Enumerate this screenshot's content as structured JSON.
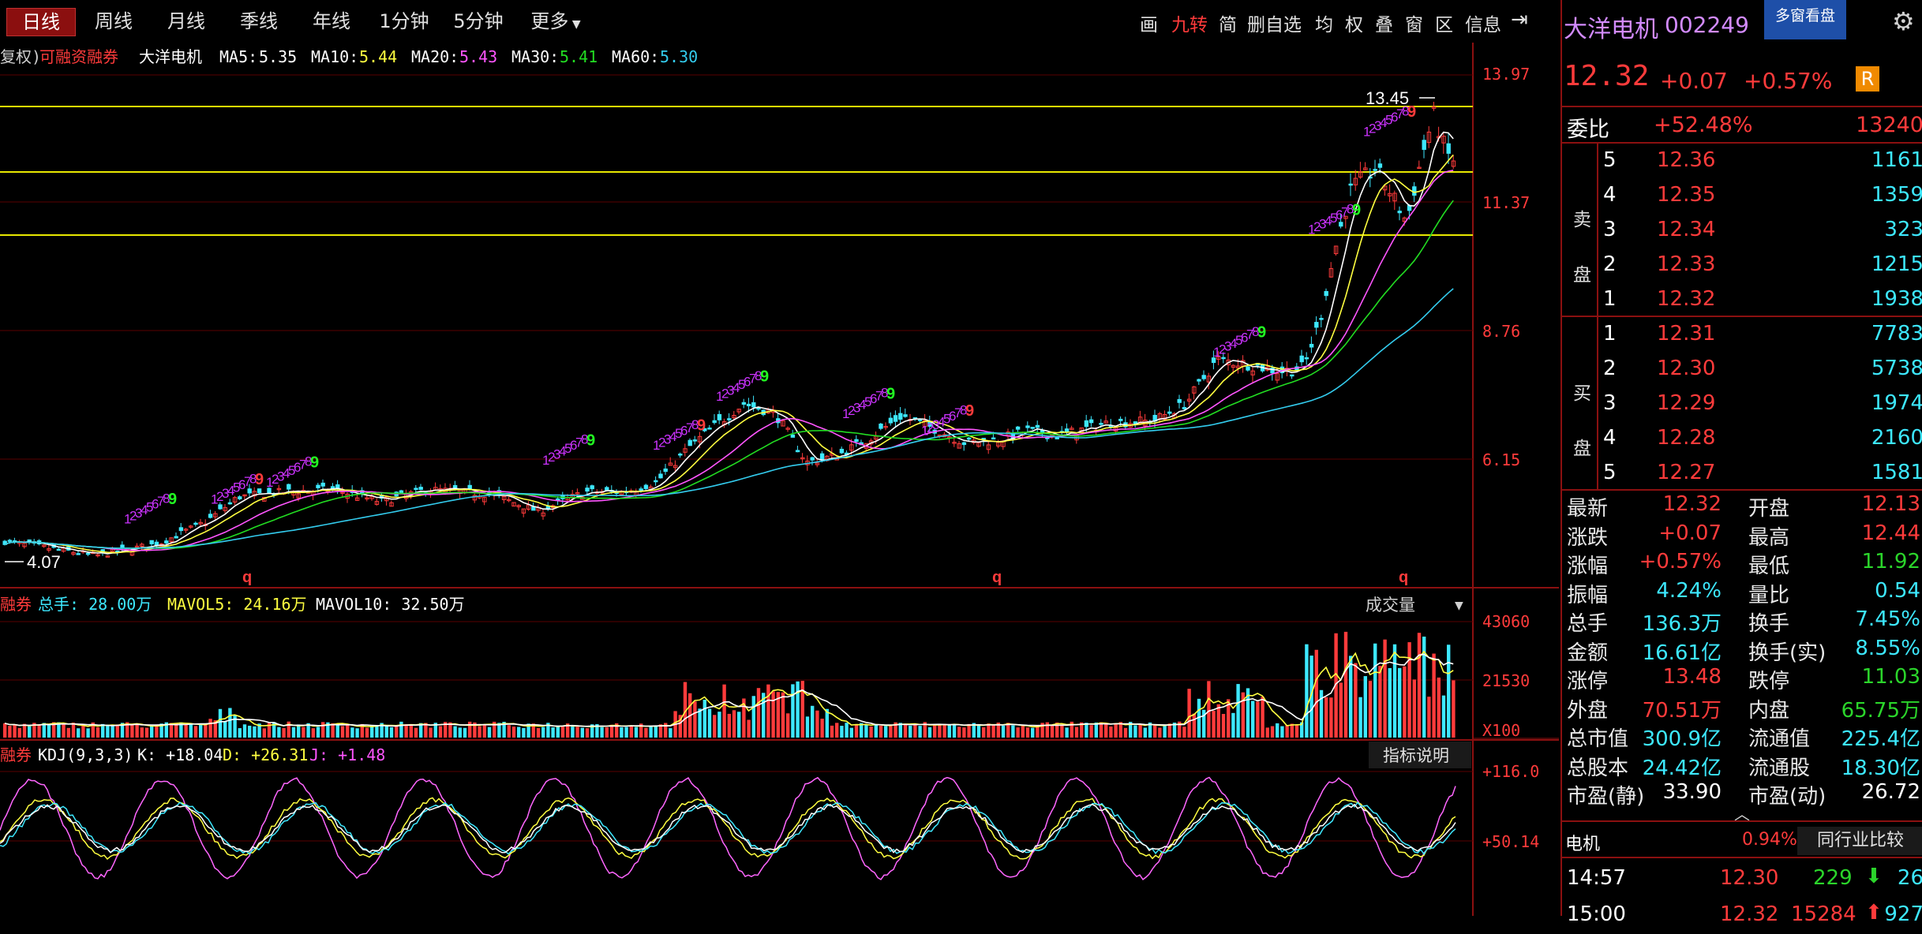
{
  "periods": [
    "日线",
    "周线",
    "月线",
    "季线",
    "年线",
    "1分钟",
    "5分钟",
    "更多"
  ],
  "tools": [
    "画",
    "九转",
    "简",
    "删自选",
    "均",
    "权",
    "叠",
    "窗",
    "区",
    "信息"
  ],
  "stock": {
    "name": "大洋电机",
    "code": "002249",
    "price": "12.32",
    "change": "+0.07",
    "change_pct": "+0.57%",
    "r_badge": "R",
    "multi_window": "多窗看盘"
  },
  "main_header": {
    "prefix": "复权)",
    "rzrq": "可融资融券",
    "name": "大洋电机",
    "ma": [
      {
        "label": "MA5:",
        "value": "5.35",
        "color": "#ffffff"
      },
      {
        "label": "MA10:",
        "value": "5.44",
        "color": "#ffff40"
      },
      {
        "label": "MA20:",
        "value": "5.43",
        "color": "#ff55ff"
      },
      {
        "label": "MA30:",
        "value": "5.41",
        "color": "#22dd22"
      },
      {
        "label": "MA60:",
        "value": "5.30",
        "color": "#33ccee"
      }
    ]
  },
  "price_axis": [
    "13.97",
    "11.37",
    "8.76",
    "6.15"
  ],
  "annotations": {
    "high": "13.45",
    "low": "4.07",
    "q": "q"
  },
  "volume_header": {
    "prefix": "融券",
    "total": "总手: 28.00万",
    "mavol5": "MAVOL5: 24.16万",
    "mavol10": "MAVOL10: 32.50万",
    "selector": "成交量"
  },
  "volume_axis": [
    "43060",
    "21530",
    "X100"
  ],
  "kdj_header": {
    "prefix": "融券",
    "name": "KDJ(9,3,3)",
    "k": "K: +18.04",
    "d": "D: +26.31",
    "j": "J: +1.48",
    "help": "指标说明"
  },
  "kdj_axis": [
    "+116.0",
    "+50.14"
  ],
  "order_book": {
    "wb_label": "委比",
    "wb_pct": "+52.48%",
    "wb_diff": "13240",
    "sell_label": [
      "卖",
      "盘"
    ],
    "buy_label": [
      "买",
      "盘"
    ],
    "asks": [
      {
        "lv": "5",
        "price": "12.36",
        "vol": "1161"
      },
      {
        "lv": "4",
        "price": "12.35",
        "vol": "1359"
      },
      {
        "lv": "3",
        "price": "12.34",
        "vol": "323"
      },
      {
        "lv": "2",
        "price": "12.33",
        "vol": "1215"
      },
      {
        "lv": "1",
        "price": "12.32",
        "vol": "1938"
      }
    ],
    "bids": [
      {
        "lv": "1",
        "price": "12.31",
        "vol": "7783"
      },
      {
        "lv": "2",
        "price": "12.30",
        "vol": "5738"
      },
      {
        "lv": "3",
        "price": "12.29",
        "vol": "1974"
      },
      {
        "lv": "4",
        "price": "12.28",
        "vol": "2160"
      },
      {
        "lv": "5",
        "price": "12.27",
        "vol": "1581"
      }
    ]
  },
  "stats": [
    {
      "l1": "最新",
      "v1": "12.32",
      "c1": "red",
      "l2": "开盘",
      "v2": "12.13",
      "c2": "red"
    },
    {
      "l1": "涨跌",
      "v1": "+0.07",
      "c1": "red",
      "l2": "最高",
      "v2": "12.44",
      "c2": "red"
    },
    {
      "l1": "涨幅",
      "v1": "+0.57%",
      "c1": "red",
      "l2": "最低",
      "v2": "11.92",
      "c2": "green"
    },
    {
      "l1": "振幅",
      "v1": "4.24%",
      "c1": "cyan",
      "l2": "量比",
      "v2": "0.54",
      "c2": "cyan"
    },
    {
      "l1": "总手",
      "v1": "136.3万",
      "c1": "cyan",
      "l2": "换手",
      "v2": "7.45%",
      "c2": "cyan"
    },
    {
      "l1": "金额",
      "v1": "16.61亿",
      "c1": "cyan",
      "l2": "换手(实)",
      "v2": "8.55%",
      "c2": "cyan"
    },
    {
      "l1": "涨停",
      "v1": "13.48",
      "c1": "red",
      "l2": "跌停",
      "v2": "11.03",
      "c2": "green"
    },
    {
      "l1": "外盘",
      "v1": "70.51万",
      "c1": "red",
      "l2": "内盘",
      "v2": "65.75万",
      "c2": "green"
    },
    {
      "l1": "总市值",
      "v1": "300.9亿",
      "c1": "cyan",
      "l2": "流通值",
      "v2": "225.4亿",
      "c2": "cyan"
    },
    {
      "l1": "总股本",
      "v1": "24.42亿",
      "c1": "cyan",
      "l2": "流通股",
      "v2": "18.30亿",
      "c2": "cyan"
    },
    {
      "l1": "市盈(静)",
      "v1": "33.90",
      "c1": "white",
      "l2": "市盈(动)",
      "v2": "26.72",
      "c2": "white"
    }
  ],
  "industry": {
    "name": "电机",
    "pct": "0.94%",
    "compare": "同行业比较"
  },
  "ticks": [
    {
      "time": "14:57",
      "price": "12.30",
      "vol": "229",
      "dir": "down",
      "extra": "26"
    },
    {
      "time": "15:00",
      "price": "12.32",
      "vol": "15284",
      "dir": "up",
      "extra": "927"
    }
  ],
  "colors": {
    "up": "#ff3b3b",
    "down": "#3de8ff",
    "ma5": "#ffffff",
    "ma10": "#ffff40",
    "ma20": "#ff55ff",
    "ma30": "#22dd22",
    "ma60": "#33ccee",
    "grid": "#5a0000",
    "accent": "#8b1010"
  }
}
